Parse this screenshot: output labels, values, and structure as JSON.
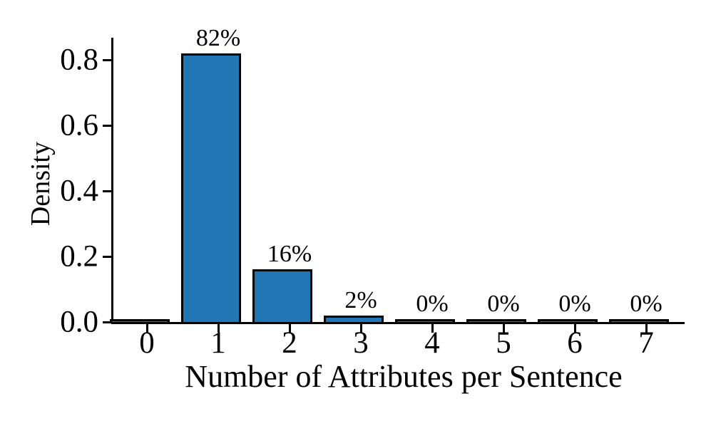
{
  "figure": {
    "background": "#ffffff",
    "text_color": "#000000"
  },
  "chart_data": {
    "type": "bar",
    "title": "",
    "xlabel": "Number of Attributes per Sentence",
    "ylabel": "Density",
    "categories": [
      "0",
      "1",
      "2",
      "3",
      "4",
      "5",
      "6",
      "7"
    ],
    "values": [
      0.001,
      0.82,
      0.16,
      0.02,
      0.003,
      0.002,
      0.002,
      0.002
    ],
    "bar_labels": [
      "",
      "82%",
      "16%",
      "2%",
      "0%",
      "0%",
      "0%",
      "0%"
    ],
    "ytick_labels": [
      "0.0",
      "0.2",
      "0.4",
      "0.6",
      "0.8"
    ],
    "ytick_values": [
      0.0,
      0.2,
      0.4,
      0.6,
      0.8
    ],
    "ylim": [
      0,
      0.867
    ],
    "grid": false,
    "legend": null,
    "bar_color": "#2077b4",
    "bar_edge_color": "#000000",
    "axis_color": "#000000"
  }
}
